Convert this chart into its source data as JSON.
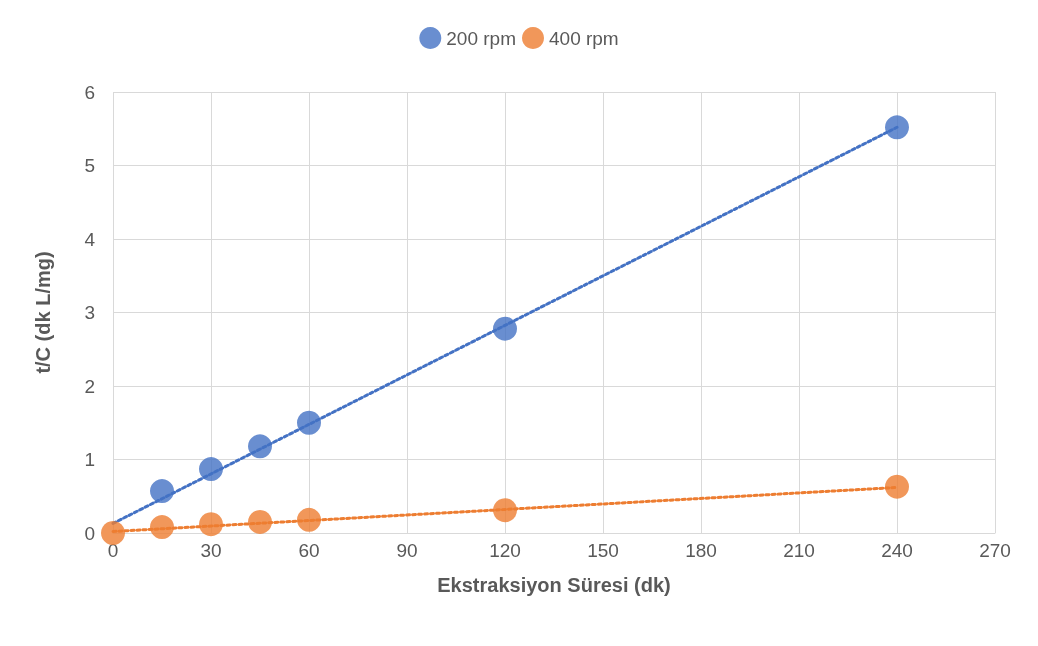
{
  "chart_data": {
    "type": "scatter",
    "xlabel": "Ekstraksiyon Süresi (dk)",
    "ylabel": "t/C (dk L/mg)",
    "xlim": [
      0,
      270
    ],
    "xticks": [
      0,
      30,
      60,
      90,
      120,
      150,
      180,
      210,
      240,
      270
    ],
    "ylim": [
      0,
      6
    ],
    "yticks": [
      0,
      1,
      2,
      3,
      4,
      5,
      6
    ],
    "grid": true,
    "legend": "top",
    "marker": "circle",
    "series": [
      {
        "name": "200 rpm",
        "color": "#4472c4",
        "x": [
          15,
          30,
          45,
          60,
          120,
          240
        ],
        "values": [
          0.57,
          0.87,
          1.18,
          1.5,
          2.78,
          5.52
        ]
      },
      {
        "name": "400 rpm",
        "color": "#ed7d31",
        "x": [
          0,
          15,
          30,
          45,
          60,
          120,
          240
        ],
        "values": [
          0,
          0.08,
          0.12,
          0.15,
          0.18,
          0.31,
          0.63
        ]
      },
      {
        "color": "#4472c4",
        "type": "line",
        "line_style": "dotted",
        "marker": "none",
        "x": [
          0,
          240
        ],
        "values": [
          0.13,
          5.52
        ]
      },
      {
        "color": "#ed7d31",
        "type": "line",
        "line_style": "dotted",
        "marker": "none",
        "x": [
          0,
          240
        ],
        "values": [
          0.02,
          0.62
        ]
      }
    ]
  }
}
